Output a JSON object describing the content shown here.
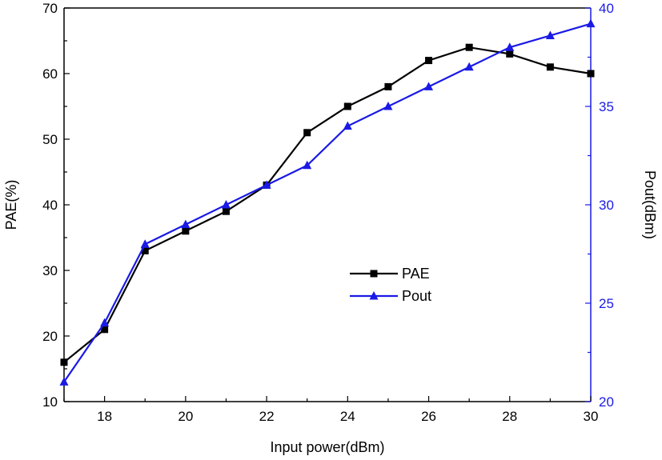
{
  "chart_data": {
    "type": "line",
    "xlabel": "Input power(dBm)",
    "ylabel_left": "PAE(%)",
    "ylabel_right": "Pout(dBm)",
    "xlim": [
      17,
      30
    ],
    "ylim_left": [
      10,
      70
    ],
    "ylim_right": [
      20,
      40
    ],
    "x_ticks": [
      18,
      20,
      22,
      24,
      26,
      28,
      30
    ],
    "y_left_ticks": [
      10,
      20,
      30,
      40,
      50,
      60,
      70
    ],
    "y_right_ticks": [
      20,
      25,
      30,
      35,
      40
    ],
    "grid": false,
    "legend_position": "center-right",
    "x": [
      17,
      18,
      19,
      20,
      21,
      22,
      23,
      24,
      25,
      26,
      27,
      28,
      29,
      30
    ],
    "series": [
      {
        "name": "PAE",
        "axis": "left",
        "marker": "square",
        "color": "#000000",
        "values": [
          16,
          21,
          33,
          36,
          39,
          43,
          51,
          55,
          58,
          62,
          64,
          63,
          61,
          60
        ]
      },
      {
        "name": "Pout",
        "axis": "right",
        "marker": "triangle",
        "color": "#1a1ae6",
        "values": [
          21,
          24,
          28,
          29,
          30,
          31,
          32,
          34,
          35,
          36,
          37,
          38,
          38.6,
          39.2
        ]
      }
    ]
  }
}
